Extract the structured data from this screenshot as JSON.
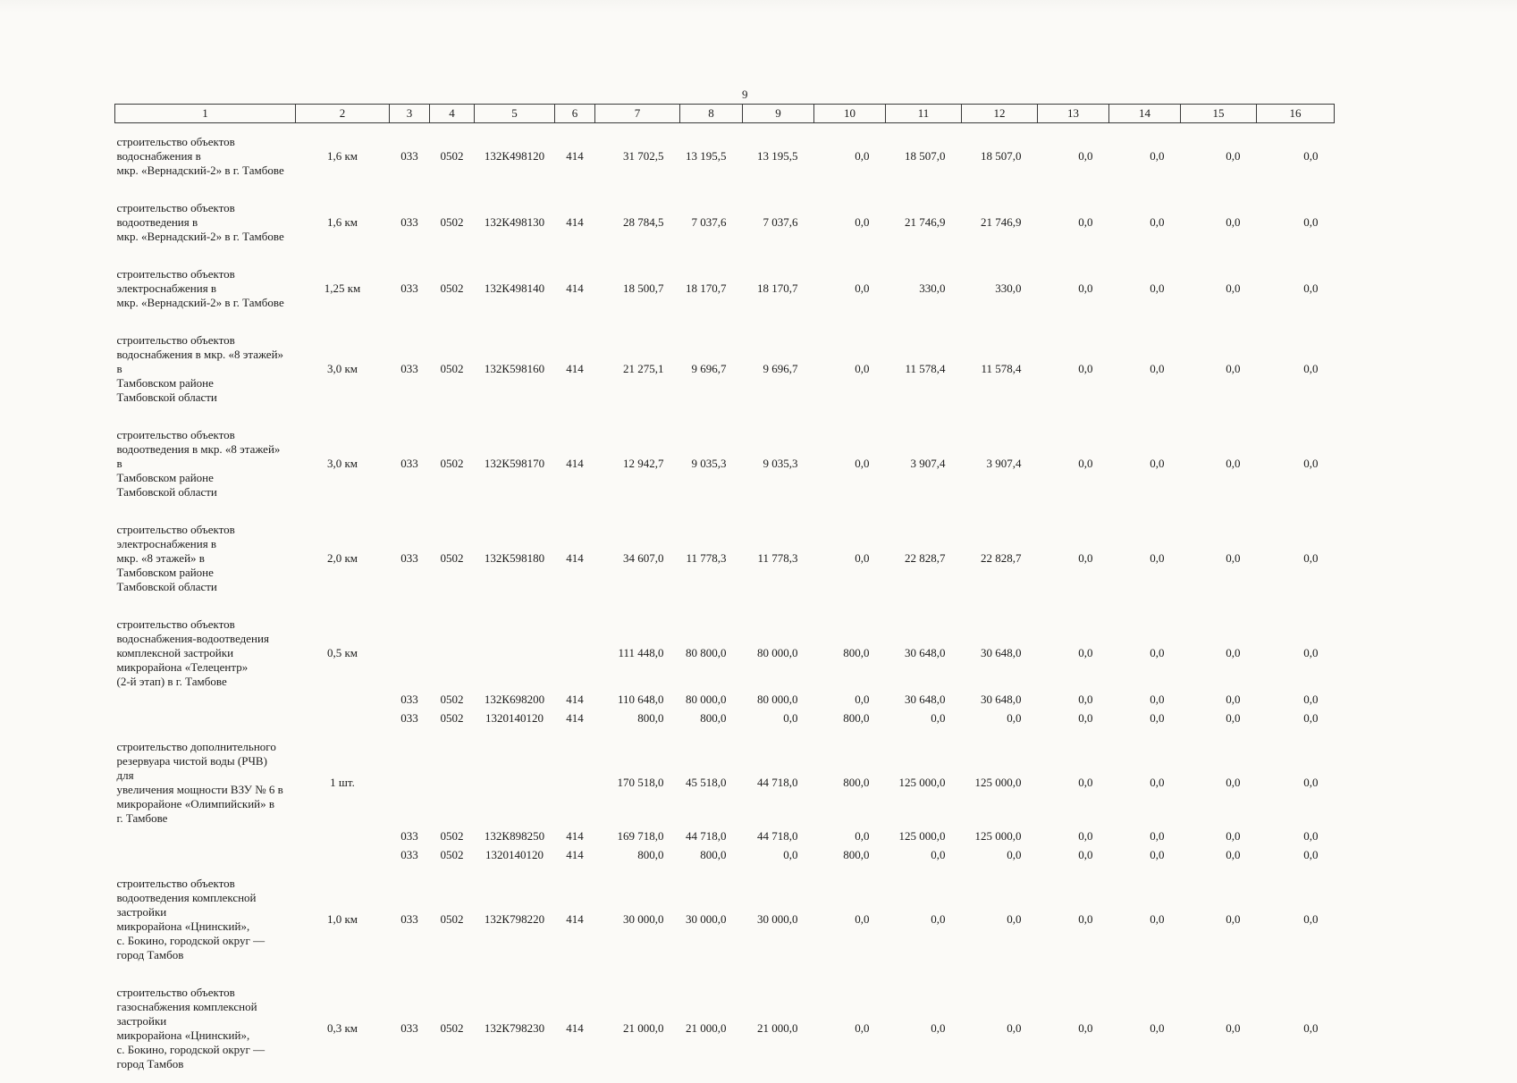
{
  "page": {
    "number": "9"
  },
  "table": {
    "columns": [
      "1",
      "2",
      "3",
      "4",
      "5",
      "6",
      "7",
      "8",
      "9",
      "10",
      "11",
      "12",
      "13",
      "14",
      "15",
      "16"
    ],
    "rows": [
      {
        "type": "main",
        "cells": [
          "строительство объектов\nводоснабжения в\nмкр. «Вернадский-2» в г. Тамбове",
          "1,6 км",
          "033",
          "0502",
          "132К498120",
          "414",
          "31 702,5",
          "13 195,5",
          "13 195,5",
          "0,0",
          "18 507,0",
          "18 507,0",
          "0,0",
          "0,0",
          "0,0",
          "0,0"
        ]
      },
      {
        "type": "main",
        "cells": [
          "строительство объектов\nводоотведения в\nмкр. «Вернадский-2» в г. Тамбове",
          "1,6 км",
          "033",
          "0502",
          "132К498130",
          "414",
          "28 784,5",
          "7 037,6",
          "7 037,6",
          "0,0",
          "21 746,9",
          "21 746,9",
          "0,0",
          "0,0",
          "0,0",
          "0,0"
        ]
      },
      {
        "type": "main",
        "cells": [
          "строительство объектов\nэлектроснабжения в\nмкр. «Вернадский-2» в г. Тамбове",
          "1,25 км",
          "033",
          "0502",
          "132К498140",
          "414",
          "18 500,7",
          "18 170,7",
          "18 170,7",
          "0,0",
          "330,0",
          "330,0",
          "0,0",
          "0,0",
          "0,0",
          "0,0"
        ]
      },
      {
        "type": "main",
        "cells": [
          "строительство объектов\nводоснабжения в мкр. «8 этажей» в\nТамбовском районе\nТамбовской области",
          "3,0 км",
          "033",
          "0502",
          "132К598160",
          "414",
          "21 275,1",
          "9 696,7",
          "9 696,7",
          "0,0",
          "11 578,4",
          "11 578,4",
          "0,0",
          "0,0",
          "0,0",
          "0,0"
        ]
      },
      {
        "type": "main",
        "cells": [
          "строительство объектов\nводоотведения в мкр. «8 этажей» в\nТамбовском районе\nТамбовской области",
          "3,0 км",
          "033",
          "0502",
          "132К598170",
          "414",
          "12 942,7",
          "9 035,3",
          "9 035,3",
          "0,0",
          "3 907,4",
          "3 907,4",
          "0,0",
          "0,0",
          "0,0",
          "0,0"
        ]
      },
      {
        "type": "main",
        "cells": [
          "строительство объектов\nэлектроснабжения в\nмкр. «8 этажей» в\nТамбовском районе\nТамбовской области",
          "2,0 км",
          "033",
          "0502",
          "132К598180",
          "414",
          "34 607,0",
          "11 778,3",
          "11 778,3",
          "0,0",
          "22 828,7",
          "22 828,7",
          "0,0",
          "0,0",
          "0,0",
          "0,0"
        ]
      },
      {
        "type": "main",
        "has_subrows": true,
        "cells": [
          "строительство объектов\nводоснабжения-водоотведения\nкомплексной застройки\nмикрорайона «Телецентр»\n(2-й этап) в г. Тамбове",
          "0,5 км",
          "",
          "",
          "",
          "",
          "111 448,0",
          "80 800,0",
          "80 000,0",
          "800,0",
          "30 648,0",
          "30 648,0",
          "0,0",
          "0,0",
          "0,0",
          "0,0"
        ]
      },
      {
        "type": "sub",
        "cells": [
          "",
          "",
          "033",
          "0502",
          "132К698200",
          "414",
          "110 648,0",
          "80 000,0",
          "80 000,0",
          "0,0",
          "30 648,0",
          "30 648,0",
          "0,0",
          "0,0",
          "0,0",
          "0,0"
        ]
      },
      {
        "type": "sub",
        "cells": [
          "",
          "",
          "033",
          "0502",
          "1320140120",
          "414",
          "800,0",
          "800,0",
          "0,0",
          "800,0",
          "0,0",
          "0,0",
          "0,0",
          "0,0",
          "0,0",
          "0,0"
        ]
      },
      {
        "type": "main",
        "has_subrows": true,
        "cells": [
          "строительство дополнительного\nрезервуара чистой воды (РЧВ) для\nувеличения мощности ВЗУ № 6 в\nмикрорайоне «Олимпийский» в\nг. Тамбове",
          "1 шт.",
          "",
          "",
          "",
          "",
          "170 518,0",
          "45 518,0",
          "44 718,0",
          "800,0",
          "125 000,0",
          "125 000,0",
          "0,0",
          "0,0",
          "0,0",
          "0,0"
        ]
      },
      {
        "type": "sub",
        "cells": [
          "",
          "",
          "033",
          "0502",
          "132К898250",
          "414",
          "169 718,0",
          "44 718,0",
          "44 718,0",
          "0,0",
          "125 000,0",
          "125 000,0",
          "0,0",
          "0,0",
          "0,0",
          "0,0"
        ]
      },
      {
        "type": "sub",
        "cells": [
          "",
          "",
          "033",
          "0502",
          "1320140120",
          "414",
          "800,0",
          "800,0",
          "0,0",
          "800,0",
          "0,0",
          "0,0",
          "0,0",
          "0,0",
          "0,0",
          "0,0"
        ]
      },
      {
        "type": "main",
        "cells": [
          "строительство объектов\nводоотведения комплексной\nзастройки\nмикрорайона «Цнинский»,\nс. Бокино, городской округ —\nгород Тамбов",
          "1,0 км",
          "033",
          "0502",
          "132К798220",
          "414",
          "30 000,0",
          "30 000,0",
          "30 000,0",
          "0,0",
          "0,0",
          "0,0",
          "0,0",
          "0,0",
          "0,0",
          "0,0"
        ]
      },
      {
        "type": "main",
        "cells": [
          "строительство объектов\nгазоснабжения комплексной\nзастройки\nмикрорайона «Цнинский»,\nс. Бокино, городской округ —\nгород Тамбов",
          "0,3 км",
          "033",
          "0502",
          "132К798230",
          "414",
          "21 000,0",
          "21 000,0",
          "21 000,0",
          "0,0",
          "0,0",
          "0,0",
          "0,0",
          "0,0",
          "0,0",
          "0,0"
        ]
      }
    ]
  }
}
